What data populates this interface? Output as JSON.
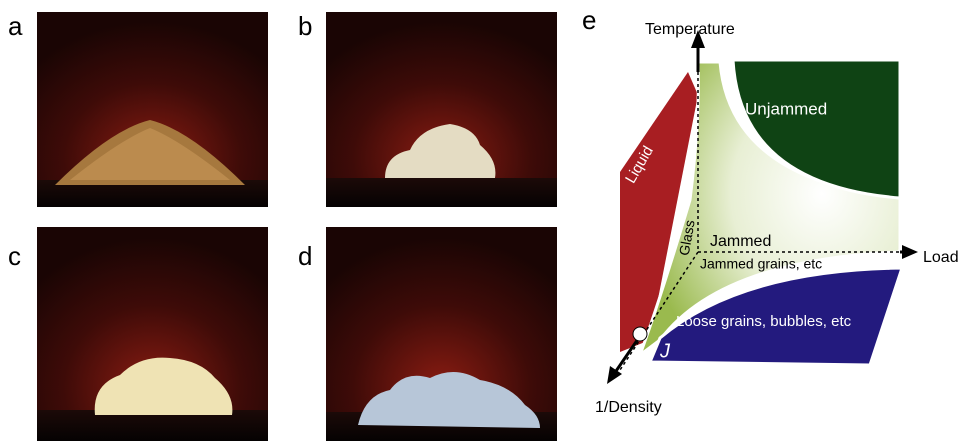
{
  "panels": [
    {
      "label": "a"
    },
    {
      "label": "b"
    },
    {
      "label": "c"
    },
    {
      "label": "d"
    }
  ],
  "diagram": {
    "label": "e",
    "axes": {
      "y": "Temperature",
      "x": "Load",
      "z": "1/Density"
    },
    "regions": {
      "unjammed": "Unjammed",
      "liquid": "Liquid",
      "glass": "Glass",
      "jammed": "Jammed",
      "jammed_sub": "Jammed grains, etc",
      "loose": "Loose grains, bubbles, etc",
      "point": "J"
    }
  }
}
